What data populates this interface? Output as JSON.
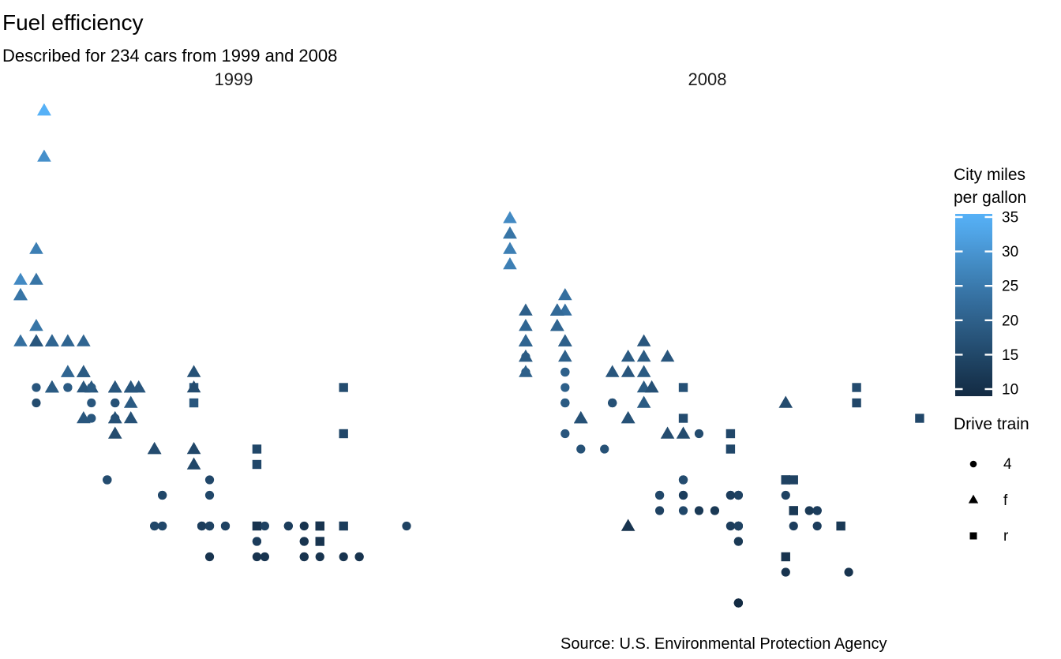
{
  "title": "Fuel efficiency",
  "subtitle": "Described for 234 cars from 1999 and 2008",
  "caption": "Source: U.S. Environmental Protection Agency",
  "facets": [
    "1999",
    "2008"
  ],
  "color_legend": {
    "title_lines": [
      "City miles",
      "per gallon"
    ],
    "ticks": [
      35,
      30,
      25,
      20,
      15,
      10
    ],
    "low_color": "#132B43",
    "high_color": "#56B1F7",
    "domain": [
      9,
      35
    ]
  },
  "shape_legend": {
    "title": "Drive train",
    "items": [
      {
        "shape": "circle",
        "label": "4"
      },
      {
        "shape": "triangle",
        "label": "f"
      },
      {
        "shape": "square",
        "label": "r"
      }
    ]
  },
  "chart_data": {
    "type": "scatter",
    "facet_variable_values": [
      1999,
      2008
    ],
    "columns": [
      "x",
      "facet_year",
      "shape_drive_train",
      "color_city_mpg",
      "y"
    ],
    "x_domain": [
      1.33,
      7.27
    ],
    "y_domain": [
      10.4,
      45.6
    ],
    "grid": false,
    "axes_hidden": true,
    "legend_position": "right",
    "points": [
      [
        1.8,
        1999,
        "f",
        18,
        29
      ],
      [
        1.8,
        1999,
        "f",
        21,
        29
      ],
      [
        2.0,
        2008,
        "f",
        20,
        31
      ],
      [
        2.0,
        2008,
        "f",
        21,
        30
      ],
      [
        2.8,
        1999,
        "f",
        16,
        26
      ],
      [
        2.8,
        1999,
        "f",
        18,
        26
      ],
      [
        3.1,
        2008,
        "f",
        18,
        27
      ],
      [
        1.8,
        1999,
        "4",
        18,
        26
      ],
      [
        1.8,
        1999,
        "4",
        16,
        25
      ],
      [
        2.0,
        2008,
        "4",
        20,
        28
      ],
      [
        2.0,
        2008,
        "4",
        19,
        27
      ],
      [
        2.8,
        1999,
        "4",
        15,
        25
      ],
      [
        2.8,
        1999,
        "4",
        17,
        25
      ],
      [
        3.1,
        2008,
        "4",
        17,
        25
      ],
      [
        3.1,
        2008,
        "4",
        15,
        25
      ],
      [
        2.8,
        1999,
        "4",
        15,
        24
      ],
      [
        3.1,
        2008,
        "4",
        17,
        25
      ],
      [
        4.2,
        2008,
        "4",
        16,
        23
      ],
      [
        5.3,
        2008,
        "r",
        14,
        20
      ],
      [
        5.3,
        2008,
        "r",
        11,
        15
      ],
      [
        5.3,
        2008,
        "r",
        14,
        20
      ],
      [
        5.7,
        1999,
        "r",
        13,
        17
      ],
      [
        6.0,
        2008,
        "r",
        12,
        17
      ],
      [
        5.7,
        1999,
        "r",
        16,
        26
      ],
      [
        5.7,
        1999,
        "r",
        15,
        23
      ],
      [
        6.2,
        2008,
        "r",
        16,
        26
      ],
      [
        6.2,
        2008,
        "r",
        15,
        25
      ],
      [
        7.0,
        2008,
        "r",
        15,
        24
      ],
      [
        5.3,
        2008,
        "4",
        14,
        19
      ],
      [
        5.3,
        2008,
        "4",
        11,
        14
      ],
      [
        5.7,
        1999,
        "4",
        11,
        15
      ],
      [
        6.5,
        1999,
        "4",
        14,
        17
      ],
      [
        2.4,
        1999,
        "f",
        19,
        27
      ],
      [
        2.4,
        2008,
        "f",
        22,
        30
      ],
      [
        3.1,
        1999,
        "f",
        18,
        26
      ],
      [
        3.5,
        2008,
        "f",
        18,
        29
      ],
      [
        3.6,
        2008,
        "f",
        17,
        26
      ],
      [
        2.4,
        1999,
        "f",
        18,
        24
      ],
      [
        3.0,
        1999,
        "f",
        17,
        24
      ],
      [
        3.3,
        1999,
        "f",
        16,
        22
      ],
      [
        3.3,
        1999,
        "f",
        16,
        22
      ],
      [
        3.3,
        2008,
        "f",
        17,
        24
      ],
      [
        3.3,
        2008,
        "f",
        17,
        24
      ],
      [
        3.3,
        2008,
        "f",
        11,
        17
      ],
      [
        3.8,
        1999,
        "f",
        15,
        22
      ],
      [
        3.8,
        1999,
        "f",
        15,
        21
      ],
      [
        3.8,
        2008,
        "f",
        16,
        23
      ],
      [
        4.0,
        2008,
        "f",
        16,
        23
      ],
      [
        3.7,
        2008,
        "4",
        15,
        19
      ],
      [
        3.7,
        2008,
        "4",
        14,
        18
      ],
      [
        3.9,
        1999,
        "4",
        13,
        17
      ],
      [
        3.9,
        1999,
        "4",
        14,
        17
      ],
      [
        4.7,
        2008,
        "4",
        14,
        19
      ],
      [
        4.7,
        2008,
        "4",
        14,
        19
      ],
      [
        4.7,
        2008,
        "4",
        9,
        12
      ],
      [
        5.2,
        1999,
        "4",
        11,
        17
      ],
      [
        5.2,
        1999,
        "4",
        11,
        15
      ],
      [
        3.9,
        1999,
        "4",
        13,
        17
      ],
      [
        4.7,
        2008,
        "4",
        13,
        17
      ],
      [
        4.7,
        2008,
        "4",
        9,
        12
      ],
      [
        4.7,
        2008,
        "4",
        13,
        17
      ],
      [
        5.2,
        1999,
        "4",
        11,
        16
      ],
      [
        5.7,
        2008,
        "4",
        13,
        18
      ],
      [
        5.9,
        1999,
        "4",
        11,
        15
      ],
      [
        4.7,
        2008,
        "4",
        13,
        17
      ],
      [
        4.7,
        2008,
        "4",
        12,
        16
      ],
      [
        4.7,
        2008,
        "4",
        9,
        12
      ],
      [
        4.7,
        2008,
        "4",
        13,
        17
      ],
      [
        4.7,
        2008,
        "4",
        13,
        17
      ],
      [
        4.7,
        2008,
        "4",
        12,
        16
      ],
      [
        5.2,
        1999,
        "4",
        11,
        15
      ],
      [
        5.2,
        1999,
        "4",
        11,
        16
      ],
      [
        5.7,
        2008,
        "4",
        13,
        17
      ],
      [
        5.9,
        1999,
        "4",
        11,
        15
      ],
      [
        4.6,
        1999,
        "r",
        11,
        17
      ],
      [
        5.4,
        1999,
        "r",
        11,
        17
      ],
      [
        5.4,
        2008,
        "r",
        12,
        18
      ],
      [
        4.0,
        1999,
        "4",
        14,
        17
      ],
      [
        4.0,
        1999,
        "4",
        15,
        19
      ],
      [
        4.0,
        1999,
        "4",
        14,
        17
      ],
      [
        4.0,
        2008,
        "4",
        13,
        19
      ],
      [
        4.6,
        2008,
        "4",
        13,
        19
      ],
      [
        5.0,
        1999,
        "4",
        13,
        17
      ],
      [
        4.2,
        1999,
        "4",
        14,
        17
      ],
      [
        4.2,
        1999,
        "4",
        14,
        17
      ],
      [
        4.6,
        1999,
        "4",
        13,
        16
      ],
      [
        4.6,
        1999,
        "4",
        13,
        16
      ],
      [
        4.6,
        2008,
        "4",
        13,
        17
      ],
      [
        5.4,
        1999,
        "4",
        11,
        15
      ],
      [
        5.4,
        2008,
        "4",
        13,
        17
      ],
      [
        3.8,
        1999,
        "r",
        18,
        26
      ],
      [
        3.8,
        1999,
        "r",
        18,
        25
      ],
      [
        4.0,
        2008,
        "r",
        17,
        26
      ],
      [
        4.0,
        2008,
        "r",
        16,
        24
      ],
      [
        4.6,
        1999,
        "r",
        15,
        21
      ],
      [
        4.6,
        1999,
        "r",
        15,
        22
      ],
      [
        4.6,
        2008,
        "r",
        15,
        23
      ],
      [
        4.6,
        2008,
        "r",
        15,
        22
      ],
      [
        5.4,
        2008,
        "r",
        14,
        20
      ],
      [
        1.6,
        1999,
        "f",
        28,
        33
      ],
      [
        1.6,
        1999,
        "f",
        24,
        32
      ],
      [
        1.6,
        1999,
        "f",
        25,
        32
      ],
      [
        1.6,
        1999,
        "f",
        23,
        29
      ],
      [
        1.6,
        1999,
        "f",
        24,
        32
      ],
      [
        1.8,
        2008,
        "f",
        26,
        34
      ],
      [
        1.8,
        2008,
        "f",
        25,
        36
      ],
      [
        1.8,
        2008,
        "f",
        24,
        36
      ],
      [
        2.0,
        2008,
        "f",
        21,
        29
      ],
      [
        2.4,
        1999,
        "f",
        18,
        26
      ],
      [
        2.4,
        1999,
        "f",
        18,
        27
      ],
      [
        2.4,
        2008,
        "f",
        21,
        30
      ],
      [
        2.4,
        2008,
        "f",
        21,
        31
      ],
      [
        2.5,
        1999,
        "f",
        18,
        26
      ],
      [
        2.5,
        1999,
        "f",
        18,
        26
      ],
      [
        3.3,
        2008,
        "f",
        19,
        28
      ],
      [
        2.0,
        1999,
        "f",
        19,
        26
      ],
      [
        2.0,
        1999,
        "f",
        19,
        29
      ],
      [
        2.0,
        2008,
        "f",
        20,
        28
      ],
      [
        2.0,
        2008,
        "f",
        20,
        27
      ],
      [
        2.7,
        2008,
        "f",
        17,
        24
      ],
      [
        2.7,
        2008,
        "f",
        16,
        24
      ],
      [
        2.7,
        2008,
        "f",
        17,
        24
      ],
      [
        3.0,
        2008,
        "4",
        17,
        22
      ],
      [
        3.7,
        2008,
        "4",
        15,
        19
      ],
      [
        4.0,
        1999,
        "4",
        15,
        20
      ],
      [
        4.7,
        1999,
        "4",
        14,
        17
      ],
      [
        4.7,
        2008,
        "4",
        9,
        12
      ],
      [
        4.7,
        2008,
        "4",
        14,
        19
      ],
      [
        5.7,
        2008,
        "4",
        13,
        18
      ],
      [
        6.1,
        2008,
        "4",
        11,
        14
      ],
      [
        4.0,
        1999,
        "4",
        11,
        15
      ],
      [
        4.2,
        2008,
        "4",
        12,
        18
      ],
      [
        4.4,
        2008,
        "4",
        12,
        18
      ],
      [
        4.6,
        1999,
        "4",
        11,
        15
      ],
      [
        5.4,
        1999,
        "r",
        11,
        17
      ],
      [
        5.4,
        1999,
        "r",
        11,
        16
      ],
      [
        5.4,
        2008,
        "r",
        12,
        18
      ],
      [
        4.0,
        1999,
        "4",
        14,
        17
      ],
      [
        4.0,
        2008,
        "4",
        13,
        19
      ],
      [
        4.6,
        2008,
        "4",
        13,
        19
      ],
      [
        5.0,
        1999,
        "4",
        13,
        17
      ],
      [
        2.4,
        1999,
        "f",
        21,
        29
      ],
      [
        2.4,
        1999,
        "f",
        19,
        27
      ],
      [
        2.5,
        2008,
        "f",
        23,
        31
      ],
      [
        2.5,
        2008,
        "f",
        23,
        32
      ],
      [
        3.5,
        2008,
        "f",
        19,
        27
      ],
      [
        3.5,
        2008,
        "f",
        19,
        26
      ],
      [
        3.0,
        1999,
        "f",
        18,
        26
      ],
      [
        3.0,
        1999,
        "f",
        19,
        25
      ],
      [
        3.5,
        2008,
        "f",
        19,
        25
      ],
      [
        3.3,
        1999,
        "4",
        14,
        17
      ],
      [
        3.3,
        1999,
        "4",
        15,
        17
      ],
      [
        4.0,
        2008,
        "4",
        14,
        20
      ],
      [
        5.6,
        2008,
        "4",
        12,
        18
      ],
      [
        3.1,
        1999,
        "f",
        18,
        26
      ],
      [
        3.8,
        1999,
        "f",
        16,
        26
      ],
      [
        3.8,
        1999,
        "f",
        17,
        27
      ],
      [
        3.8,
        2008,
        "f",
        18,
        28
      ],
      [
        5.3,
        2008,
        "f",
        16,
        25
      ],
      [
        2.5,
        1999,
        "4",
        18,
        25
      ],
      [
        2.5,
        1999,
        "4",
        18,
        24
      ],
      [
        2.5,
        2008,
        "4",
        20,
        27
      ],
      [
        2.5,
        2008,
        "4",
        19,
        25
      ],
      [
        2.5,
        2008,
        "4",
        20,
        26
      ],
      [
        2.5,
        2008,
        "4",
        18,
        23
      ],
      [
        2.2,
        1999,
        "4",
        21,
        26
      ],
      [
        2.2,
        1999,
        "4",
        19,
        26
      ],
      [
        2.5,
        1999,
        "4",
        19,
        26
      ],
      [
        2.5,
        1999,
        "4",
        19,
        26
      ],
      [
        2.5,
        2008,
        "4",
        20,
        25
      ],
      [
        2.5,
        2008,
        "4",
        20,
        27
      ],
      [
        2.5,
        2008,
        "4",
        19,
        25
      ],
      [
        2.5,
        2008,
        "4",
        20,
        27
      ],
      [
        2.7,
        1999,
        "4",
        15,
        20
      ],
      [
        2.7,
        1999,
        "4",
        16,
        20
      ],
      [
        3.4,
        1999,
        "4",
        15,
        19
      ],
      [
        3.4,
        1999,
        "4",
        15,
        17
      ],
      [
        4.0,
        2008,
        "4",
        16,
        20
      ],
      [
        4.7,
        2008,
        "4",
        14,
        17
      ],
      [
        2.2,
        1999,
        "f",
        21,
        29
      ],
      [
        2.2,
        1999,
        "f",
        21,
        27
      ],
      [
        2.4,
        2008,
        "f",
        21,
        31
      ],
      [
        2.4,
        2008,
        "f",
        21,
        31
      ],
      [
        3.0,
        1999,
        "f",
        18,
        26
      ],
      [
        3.0,
        1999,
        "f",
        18,
        26
      ],
      [
        3.5,
        2008,
        "f",
        19,
        28
      ],
      [
        2.2,
        1999,
        "f",
        21,
        27
      ],
      [
        2.2,
        1999,
        "f",
        21,
        29
      ],
      [
        2.4,
        2008,
        "f",
        21,
        31
      ],
      [
        2.4,
        2008,
        "f",
        22,
        31
      ],
      [
        3.0,
        1999,
        "f",
        18,
        26
      ],
      [
        3.0,
        1999,
        "f",
        18,
        26
      ],
      [
        3.3,
        2008,
        "f",
        18,
        27
      ],
      [
        1.8,
        1999,
        "f",
        24,
        30
      ],
      [
        1.8,
        1999,
        "f",
        24,
        33
      ],
      [
        1.8,
        1999,
        "f",
        26,
        35
      ],
      [
        1.8,
        2008,
        "f",
        28,
        37
      ],
      [
        1.8,
        2008,
        "f",
        26,
        35
      ],
      [
        4.7,
        1999,
        "4",
        11,
        15
      ],
      [
        5.7,
        2008,
        "4",
        13,
        18
      ],
      [
        2.7,
        1999,
        "4",
        15,
        20
      ],
      [
        2.7,
        1999,
        "4",
        16,
        20
      ],
      [
        2.7,
        2008,
        "4",
        17,
        22
      ],
      [
        3.4,
        1999,
        "4",
        15,
        17
      ],
      [
        3.4,
        1999,
        "4",
        15,
        19
      ],
      [
        4.0,
        2008,
        "4",
        15,
        18
      ],
      [
        4.0,
        2008,
        "4",
        16,
        20
      ],
      [
        2.0,
        1999,
        "f",
        21,
        29
      ],
      [
        2.0,
        1999,
        "f",
        19,
        26
      ],
      [
        2.0,
        2008,
        "f",
        21,
        29
      ],
      [
        2.0,
        2008,
        "f",
        22,
        29
      ],
      [
        2.8,
        1999,
        "f",
        17,
        24
      ],
      [
        1.9,
        1999,
        "f",
        33,
        44
      ],
      [
        2.0,
        1999,
        "f",
        21,
        29
      ],
      [
        2.0,
        1999,
        "f",
        19,
        26
      ],
      [
        2.0,
        2008,
        "f",
        22,
        29
      ],
      [
        2.0,
        2008,
        "f",
        21,
        29
      ],
      [
        2.5,
        2008,
        "f",
        21,
        29
      ],
      [
        2.5,
        2008,
        "f",
        21,
        29
      ],
      [
        2.8,
        1999,
        "f",
        16,
        23
      ],
      [
        2.8,
        1999,
        "f",
        17,
        24
      ],
      [
        1.9,
        1999,
        "f",
        35,
        44
      ],
      [
        1.9,
        1999,
        "f",
        29,
        41
      ],
      [
        2.0,
        1999,
        "f",
        21,
        29
      ],
      [
        2.0,
        1999,
        "f",
        19,
        26
      ],
      [
        2.5,
        2008,
        "f",
        20,
        28
      ],
      [
        2.5,
        2008,
        "f",
        20,
        29
      ],
      [
        1.8,
        1999,
        "f",
        21,
        29
      ],
      [
        1.8,
        1999,
        "f",
        18,
        29
      ],
      [
        2.0,
        2008,
        "f",
        19,
        28
      ],
      [
        2.0,
        2008,
        "f",
        21,
        29
      ],
      [
        2.8,
        1999,
        "f",
        16,
        26
      ],
      [
        2.8,
        1999,
        "f",
        18,
        26
      ],
      [
        3.6,
        2008,
        "f",
        17,
        26
      ]
    ]
  }
}
